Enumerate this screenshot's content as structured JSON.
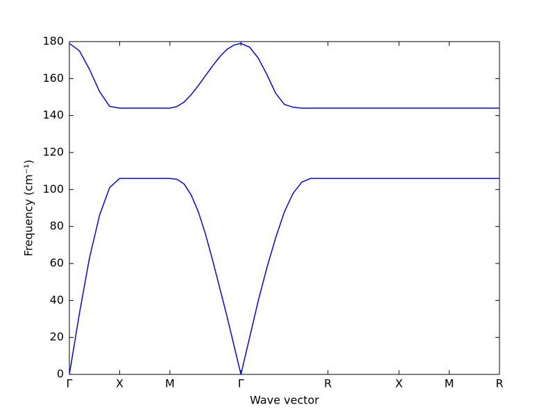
{
  "chart_data": {
    "type": "line",
    "x_label": "Wave vector",
    "y_label": "Frequency (cm⁻¹)",
    "x": [
      0,
      0.1,
      0.2,
      0.3,
      0.4,
      0.5,
      1.0,
      1.0707,
      1.1414,
      1.2121,
      1.2828,
      1.3535,
      1.4242,
      1.4949,
      1.5656,
      1.6363,
      1.707,
      1.7936,
      1.8802,
      1.9668,
      2.0534,
      2.14,
      2.2266,
      2.3132,
      2.3998,
      2.4864,
      2.573,
      3.28,
      3.78,
      4.28
    ],
    "series": [
      {
        "color": "#0000ff",
        "values": [
          0,
          33,
          63,
          86,
          101,
          106,
          106,
          105.5,
          103,
          97,
          88,
          76,
          62,
          47,
          32,
          16,
          0,
          20,
          40,
          58,
          74,
          88,
          98,
          104,
          106,
          106,
          106,
          106,
          106,
          106
        ]
      },
      {
        "color": "#0000ff",
        "values": [
          179,
          175,
          165,
          153,
          145,
          144,
          144,
          144.9,
          147.3,
          151.3,
          156.2,
          161.5,
          166.8,
          171.7,
          175.7,
          178.1,
          179,
          177,
          171,
          162,
          152,
          146,
          144.5,
          144,
          144,
          144,
          144,
          144,
          144,
          144
        ]
      }
    ],
    "xlim": [
      0,
      4.28
    ],
    "xticks": [
      {
        "value": 0,
        "label": "Γ"
      },
      {
        "value": 0.5,
        "label": "X"
      },
      {
        "value": 1.0,
        "label": "M"
      },
      {
        "value": 1.707,
        "label": "Γ"
      },
      {
        "value": 2.573,
        "label": "R"
      },
      {
        "value": 3.28,
        "label": "X"
      },
      {
        "value": 3.78,
        "label": "M"
      },
      {
        "value": 4.28,
        "label": "R"
      }
    ],
    "ylim": [
      0,
      180
    ],
    "yticks": [
      0,
      20,
      40,
      60,
      80,
      100,
      120,
      140,
      160,
      180
    ]
  }
}
